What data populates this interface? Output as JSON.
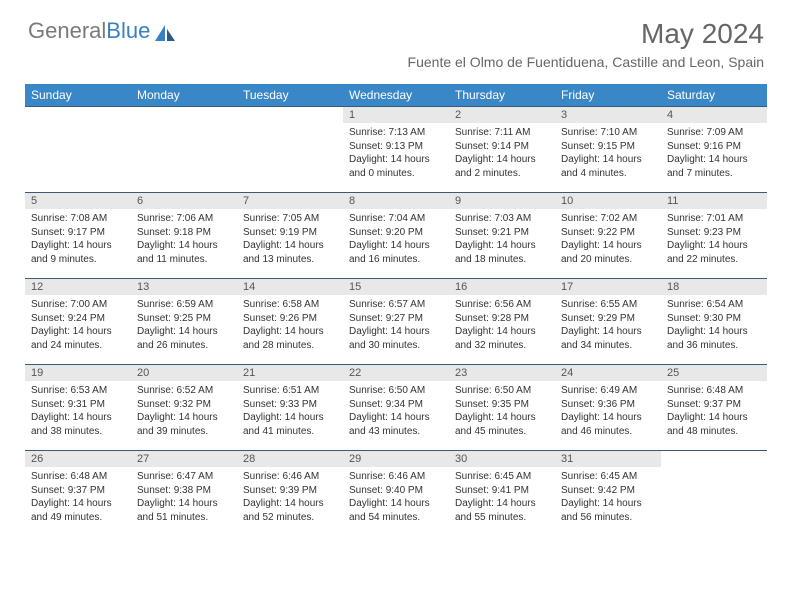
{
  "logo": {
    "text_gray": "General",
    "text_blue": "Blue"
  },
  "title": "May 2024",
  "location": "Fuente el Olmo de Fuentiduena, Castille and Leon, Spain",
  "weekdays": [
    "Sunday",
    "Monday",
    "Tuesday",
    "Wednesday",
    "Thursday",
    "Friday",
    "Saturday"
  ],
  "colors": {
    "header_bg": "#3a87c8",
    "header_text": "#ffffff",
    "daynum_bg": "#e8e8e8",
    "border": "#3a5a7a",
    "title_color": "#666666",
    "logo_gray": "#7a7a7a",
    "logo_blue": "#3a7fc4"
  },
  "weeks": [
    [
      {
        "day": "",
        "empty": true
      },
      {
        "day": "",
        "empty": true
      },
      {
        "day": "",
        "empty": true
      },
      {
        "day": "1",
        "sunrise": "Sunrise: 7:13 AM",
        "sunset": "Sunset: 9:13 PM",
        "daylight": "Daylight: 14 hours and 0 minutes."
      },
      {
        "day": "2",
        "sunrise": "Sunrise: 7:11 AM",
        "sunset": "Sunset: 9:14 PM",
        "daylight": "Daylight: 14 hours and 2 minutes."
      },
      {
        "day": "3",
        "sunrise": "Sunrise: 7:10 AM",
        "sunset": "Sunset: 9:15 PM",
        "daylight": "Daylight: 14 hours and 4 minutes."
      },
      {
        "day": "4",
        "sunrise": "Sunrise: 7:09 AM",
        "sunset": "Sunset: 9:16 PM",
        "daylight": "Daylight: 14 hours and 7 minutes."
      }
    ],
    [
      {
        "day": "5",
        "sunrise": "Sunrise: 7:08 AM",
        "sunset": "Sunset: 9:17 PM",
        "daylight": "Daylight: 14 hours and 9 minutes."
      },
      {
        "day": "6",
        "sunrise": "Sunrise: 7:06 AM",
        "sunset": "Sunset: 9:18 PM",
        "daylight": "Daylight: 14 hours and 11 minutes."
      },
      {
        "day": "7",
        "sunrise": "Sunrise: 7:05 AM",
        "sunset": "Sunset: 9:19 PM",
        "daylight": "Daylight: 14 hours and 13 minutes."
      },
      {
        "day": "8",
        "sunrise": "Sunrise: 7:04 AM",
        "sunset": "Sunset: 9:20 PM",
        "daylight": "Daylight: 14 hours and 16 minutes."
      },
      {
        "day": "9",
        "sunrise": "Sunrise: 7:03 AM",
        "sunset": "Sunset: 9:21 PM",
        "daylight": "Daylight: 14 hours and 18 minutes."
      },
      {
        "day": "10",
        "sunrise": "Sunrise: 7:02 AM",
        "sunset": "Sunset: 9:22 PM",
        "daylight": "Daylight: 14 hours and 20 minutes."
      },
      {
        "day": "11",
        "sunrise": "Sunrise: 7:01 AM",
        "sunset": "Sunset: 9:23 PM",
        "daylight": "Daylight: 14 hours and 22 minutes."
      }
    ],
    [
      {
        "day": "12",
        "sunrise": "Sunrise: 7:00 AM",
        "sunset": "Sunset: 9:24 PM",
        "daylight": "Daylight: 14 hours and 24 minutes."
      },
      {
        "day": "13",
        "sunrise": "Sunrise: 6:59 AM",
        "sunset": "Sunset: 9:25 PM",
        "daylight": "Daylight: 14 hours and 26 minutes."
      },
      {
        "day": "14",
        "sunrise": "Sunrise: 6:58 AM",
        "sunset": "Sunset: 9:26 PM",
        "daylight": "Daylight: 14 hours and 28 minutes."
      },
      {
        "day": "15",
        "sunrise": "Sunrise: 6:57 AM",
        "sunset": "Sunset: 9:27 PM",
        "daylight": "Daylight: 14 hours and 30 minutes."
      },
      {
        "day": "16",
        "sunrise": "Sunrise: 6:56 AM",
        "sunset": "Sunset: 9:28 PM",
        "daylight": "Daylight: 14 hours and 32 minutes."
      },
      {
        "day": "17",
        "sunrise": "Sunrise: 6:55 AM",
        "sunset": "Sunset: 9:29 PM",
        "daylight": "Daylight: 14 hours and 34 minutes."
      },
      {
        "day": "18",
        "sunrise": "Sunrise: 6:54 AM",
        "sunset": "Sunset: 9:30 PM",
        "daylight": "Daylight: 14 hours and 36 minutes."
      }
    ],
    [
      {
        "day": "19",
        "sunrise": "Sunrise: 6:53 AM",
        "sunset": "Sunset: 9:31 PM",
        "daylight": "Daylight: 14 hours and 38 minutes."
      },
      {
        "day": "20",
        "sunrise": "Sunrise: 6:52 AM",
        "sunset": "Sunset: 9:32 PM",
        "daylight": "Daylight: 14 hours and 39 minutes."
      },
      {
        "day": "21",
        "sunrise": "Sunrise: 6:51 AM",
        "sunset": "Sunset: 9:33 PM",
        "daylight": "Daylight: 14 hours and 41 minutes."
      },
      {
        "day": "22",
        "sunrise": "Sunrise: 6:50 AM",
        "sunset": "Sunset: 9:34 PM",
        "daylight": "Daylight: 14 hours and 43 minutes."
      },
      {
        "day": "23",
        "sunrise": "Sunrise: 6:50 AM",
        "sunset": "Sunset: 9:35 PM",
        "daylight": "Daylight: 14 hours and 45 minutes."
      },
      {
        "day": "24",
        "sunrise": "Sunrise: 6:49 AM",
        "sunset": "Sunset: 9:36 PM",
        "daylight": "Daylight: 14 hours and 46 minutes."
      },
      {
        "day": "25",
        "sunrise": "Sunrise: 6:48 AM",
        "sunset": "Sunset: 9:37 PM",
        "daylight": "Daylight: 14 hours and 48 minutes."
      }
    ],
    [
      {
        "day": "26",
        "sunrise": "Sunrise: 6:48 AM",
        "sunset": "Sunset: 9:37 PM",
        "daylight": "Daylight: 14 hours and 49 minutes."
      },
      {
        "day": "27",
        "sunrise": "Sunrise: 6:47 AM",
        "sunset": "Sunset: 9:38 PM",
        "daylight": "Daylight: 14 hours and 51 minutes."
      },
      {
        "day": "28",
        "sunrise": "Sunrise: 6:46 AM",
        "sunset": "Sunset: 9:39 PM",
        "daylight": "Daylight: 14 hours and 52 minutes."
      },
      {
        "day": "29",
        "sunrise": "Sunrise: 6:46 AM",
        "sunset": "Sunset: 9:40 PM",
        "daylight": "Daylight: 14 hours and 54 minutes."
      },
      {
        "day": "30",
        "sunrise": "Sunrise: 6:45 AM",
        "sunset": "Sunset: 9:41 PM",
        "daylight": "Daylight: 14 hours and 55 minutes."
      },
      {
        "day": "31",
        "sunrise": "Sunrise: 6:45 AM",
        "sunset": "Sunset: 9:42 PM",
        "daylight": "Daylight: 14 hours and 56 minutes."
      },
      {
        "day": "",
        "empty": true
      }
    ]
  ]
}
